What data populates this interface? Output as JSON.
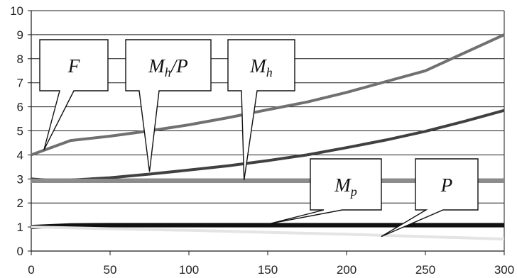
{
  "chart_data": {
    "type": "line",
    "xlim": [
      0,
      300
    ],
    "ylim": [
      0,
      10
    ],
    "x_ticks": [
      "0",
      "50",
      "100",
      "150",
      "200",
      "250",
      "300"
    ],
    "y_ticks": [
      "0",
      "1",
      "2",
      "3",
      "4",
      "5",
      "6",
      "7",
      "8",
      "9",
      "10"
    ],
    "grid": "horizontal",
    "series": [
      {
        "key": "F",
        "color": "#707070",
        "x": [
          0,
          25,
          50,
          75,
          100,
          125,
          150,
          175,
          200,
          225,
          250,
          275,
          300
        ],
        "y": [
          4.0,
          4.6,
          4.78,
          5.0,
          5.25,
          5.55,
          5.88,
          6.2,
          6.6,
          7.05,
          7.5,
          8.25,
          9.0
        ]
      },
      {
        "key": "Mh",
        "color": "#404040",
        "x": [
          0,
          15,
          25,
          50,
          75,
          100,
          125,
          150,
          175,
          200,
          225,
          250,
          275,
          300
        ],
        "y": [
          3.0,
          2.92,
          2.95,
          3.05,
          3.2,
          3.37,
          3.55,
          3.76,
          4.0,
          4.3,
          4.62,
          4.98,
          5.4,
          5.85
        ]
      },
      {
        "key": "Mh/P",
        "color": "#8c8c8c",
        "x": [
          0,
          300
        ],
        "y": [
          2.92,
          2.92
        ]
      },
      {
        "key": "Mp",
        "color": "#111111",
        "x": [
          0,
          25,
          50,
          100,
          150,
          200,
          250,
          300
        ],
        "y": [
          1.0,
          1.07,
          1.08,
          1.08,
          1.08,
          1.08,
          1.08,
          1.08
        ]
      },
      {
        "key": "P",
        "color": "#e4e4e4",
        "x": [
          0,
          50,
          100,
          150,
          200,
          250,
          300
        ],
        "y": [
          1.0,
          0.93,
          0.86,
          0.78,
          0.7,
          0.6,
          0.5
        ]
      }
    ],
    "callouts": [
      {
        "key": "F",
        "main": "F",
        "sub": "",
        "tail": "",
        "target": [
          8,
          4.2
        ]
      },
      {
        "key": "Mh/P",
        "main": "M",
        "sub": "h",
        "tail": "/P",
        "target": [
          75,
          3.3
        ]
      },
      {
        "key": "Mh",
        "main": "M",
        "sub": "h",
        "tail": "",
        "target": [
          135,
          2.95
        ]
      },
      {
        "key": "Mp",
        "main": "M",
        "sub": "p",
        "tail": "",
        "target": [
          152,
          1.15
        ]
      },
      {
        "key": "P",
        "main": "P",
        "sub": "",
        "tail": "",
        "target": [
          222,
          0.6
        ]
      }
    ]
  }
}
